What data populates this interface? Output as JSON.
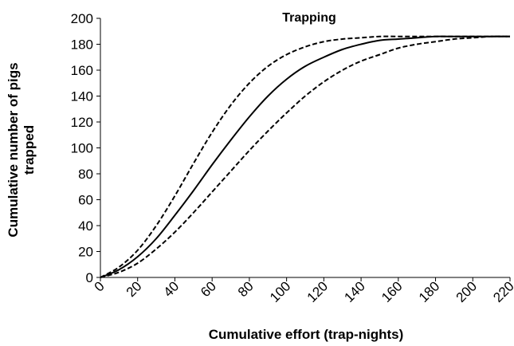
{
  "chart_data": {
    "type": "line",
    "title": "Trapping",
    "xlabel": "Cumulative effort (trap-nights)",
    "ylabel_lines": [
      "Cumulative number of pigs",
      "trapped"
    ],
    "xlim": [
      0,
      220
    ],
    "ylim": [
      0,
      200
    ],
    "x_ticks": [
      0,
      20,
      40,
      60,
      80,
      100,
      120,
      140,
      160,
      180,
      200,
      220
    ],
    "y_ticks": [
      0,
      20,
      40,
      60,
      80,
      100,
      120,
      140,
      160,
      180,
      200
    ],
    "grid": false,
    "legend": "none",
    "series": [
      {
        "style": "dashed",
        "color": "#000000",
        "x": [
          0,
          10,
          20,
          30,
          40,
          50,
          60,
          70,
          80,
          90,
          100,
          110,
          120,
          130,
          140,
          150,
          160,
          170,
          180,
          190,
          200,
          210,
          220
        ],
        "y": [
          0,
          8,
          21,
          40,
          63,
          88,
          112,
          133,
          150,
          163,
          172,
          178,
          182,
          184,
          185,
          186,
          186,
          186,
          186,
          186,
          186,
          186,
          186
        ]
      },
      {
        "style": "solid",
        "color": "#000000",
        "x": [
          0,
          10,
          20,
          30,
          40,
          50,
          60,
          70,
          80,
          90,
          100,
          110,
          120,
          130,
          140,
          150,
          160,
          170,
          180,
          190,
          200,
          210,
          220
        ],
        "y": [
          0,
          6,
          16,
          30,
          48,
          67,
          87,
          106,
          124,
          140,
          153,
          163,
          170,
          176,
          180,
          183,
          184,
          185,
          186,
          186,
          186,
          186,
          186
        ]
      },
      {
        "style": "dashed",
        "color": "#000000",
        "x": [
          0,
          10,
          20,
          30,
          40,
          50,
          60,
          70,
          80,
          90,
          100,
          110,
          120,
          130,
          140,
          150,
          160,
          170,
          180,
          190,
          200,
          210,
          220
        ],
        "y": [
          0,
          4,
          11,
          22,
          35,
          50,
          66,
          82,
          98,
          113,
          127,
          140,
          151,
          160,
          167,
          172,
          177,
          180,
          182,
          184,
          185,
          186,
          186
        ]
      }
    ]
  }
}
